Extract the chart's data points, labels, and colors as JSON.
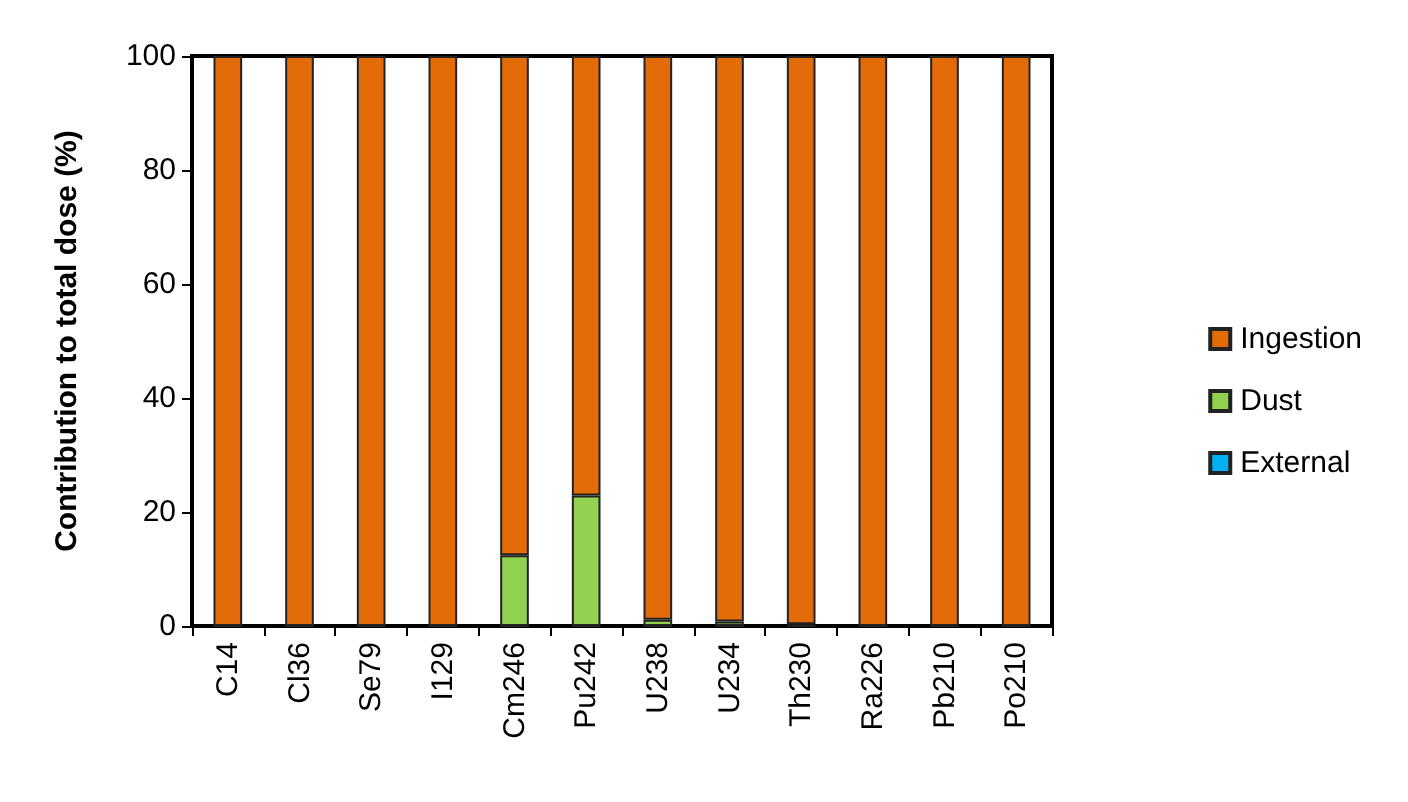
{
  "chart_data": {
    "type": "bar",
    "stacked": true,
    "ylabel": "Contribution to total dose (%)",
    "categories": [
      "C14",
      "Cl36",
      "Se79",
      "I129",
      "Cm246",
      "Pu242",
      "U238",
      "U234",
      "Th230",
      "Ra226",
      "Pb210",
      "Po210"
    ],
    "series": [
      {
        "name": "External",
        "color": "#00b0f0",
        "values": [
          0,
          0,
          0,
          0,
          0,
          0,
          0,
          0,
          0,
          0,
          0,
          0
        ]
      },
      {
        "name": "Dust",
        "color": "#92d050",
        "values": [
          0,
          0,
          0,
          0,
          12.4,
          22.9,
          1.1,
          0.8,
          0.3,
          0,
          0,
          0
        ]
      },
      {
        "name": "Ingestion",
        "color": "#e36c09",
        "values": [
          100,
          100,
          100,
          100,
          87.6,
          77.1,
          98.9,
          99.2,
          99.7,
          100,
          100,
          100
        ]
      }
    ],
    "ylim": [
      0,
      100
    ],
    "yticks": [
      0,
      20,
      40,
      60,
      80,
      100
    ],
    "grid": false,
    "legend": "right"
  }
}
